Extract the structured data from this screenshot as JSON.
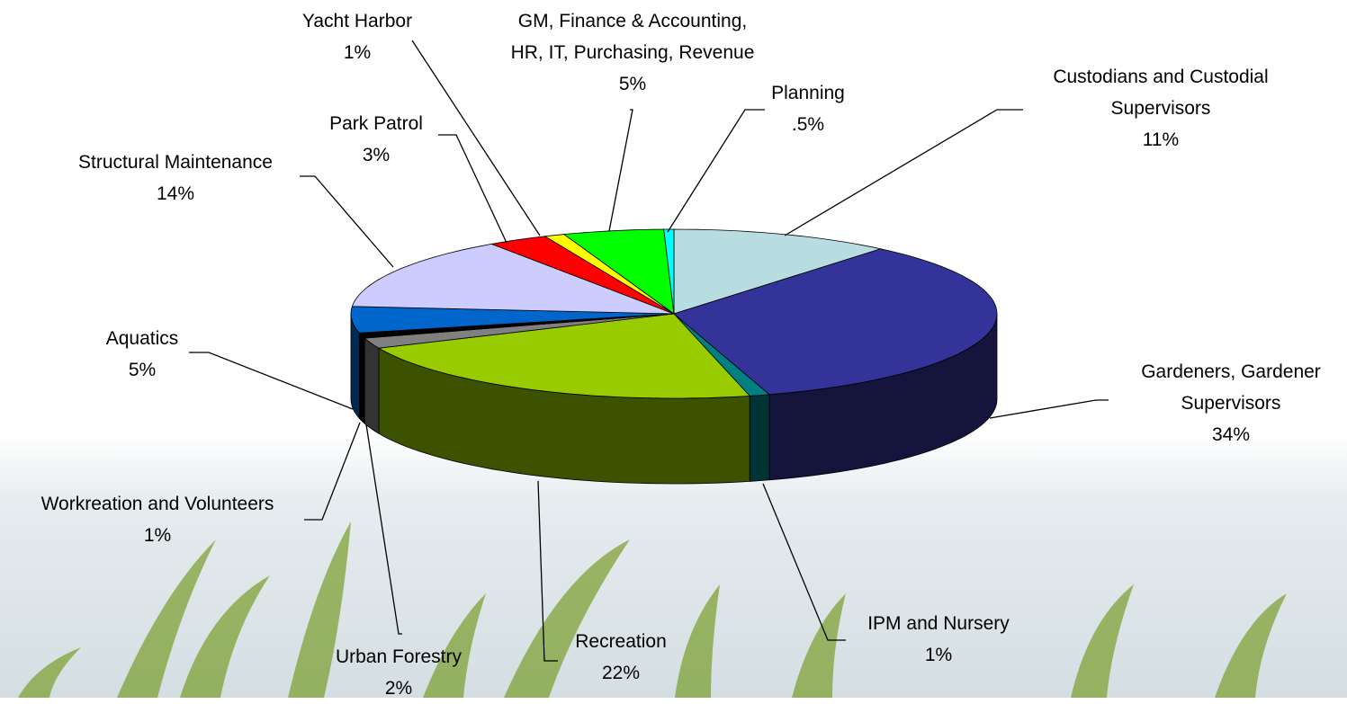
{
  "chart_data": {
    "type": "pie",
    "categories": [
      "Custodians and Custodial Supervisors",
      "Gardeners, Gardener Supervisors",
      "IPM and Nursery",
      "Recreation",
      "Urban Forestry",
      "Workreation and Volunteers",
      "Aquatics",
      "Structural Maintenance",
      "Park Patrol",
      "Yacht Harbor",
      "GM, Finance & Accounting, HR, IT, Purchasing, Revenue",
      "Planning"
    ],
    "values": [
      11,
      34,
      1,
      22,
      2,
      1,
      5,
      14,
      3,
      1,
      5,
      0.5
    ],
    "value_labels": [
      "11%",
      "34%",
      "1%",
      "22%",
      "2%",
      "1%",
      "5%",
      "14%",
      "3%",
      "1%",
      "5%",
      ".5%"
    ],
    "colors": [
      "#b8dde0",
      "#333399",
      "#008080",
      "#99cc00",
      "#808080",
      "#000000",
      "#0066cc",
      "#ccccff",
      "#ff0000",
      "#ffff00",
      "#00ff00",
      "#00ffff"
    ]
  }
}
